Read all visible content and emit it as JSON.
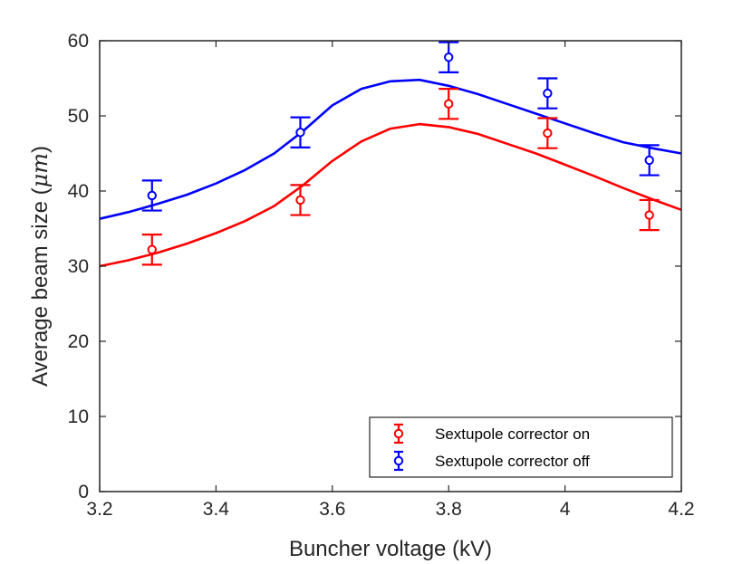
{
  "chart_data": {
    "type": "scatter",
    "title": "",
    "xlabel": "Buncher voltage (kV)",
    "ylabel_prefix": "Average beam size (",
    "ylabel_unit": "μm",
    "ylabel_suffix": ")",
    "xlim": [
      3.2,
      4.2
    ],
    "ylim": [
      0,
      60
    ],
    "xticks": [
      3.2,
      3.4,
      3.6,
      3.8,
      4.0,
      4.2
    ],
    "xtick_labels": [
      "3.2",
      "3.4",
      "3.6",
      "3.8",
      "4",
      "4.2"
    ],
    "yticks": [
      0,
      10,
      20,
      30,
      40,
      50,
      60
    ],
    "ytick_labels": [
      "0",
      "10",
      "20",
      "30",
      "40",
      "50",
      "60"
    ],
    "grid": false,
    "legend_position": "bottom-right",
    "series": [
      {
        "name": "Sextupole corrector on",
        "color": "#ff0000",
        "points": [
          {
            "x": 3.29,
            "y": 32.2,
            "err": 2.0
          },
          {
            "x": 3.545,
            "y": 38.8,
            "err": 2.0
          },
          {
            "x": 3.8,
            "y": 51.6,
            "err": 2.0
          },
          {
            "x": 3.97,
            "y": 47.7,
            "err": 2.0
          },
          {
            "x": 4.145,
            "y": 36.8,
            "err": 2.0
          }
        ],
        "fit": {
          "x": [
            3.2,
            3.25,
            3.3,
            3.35,
            3.4,
            3.45,
            3.5,
            3.55,
            3.6,
            3.65,
            3.7,
            3.75,
            3.8,
            3.85,
            3.9,
            3.95,
            4.0,
            4.05,
            4.1,
            4.15,
            4.2
          ],
          "y": [
            30.0,
            30.8,
            31.8,
            33.0,
            34.4,
            36.0,
            38.0,
            40.8,
            44.0,
            46.6,
            48.3,
            48.9,
            48.5,
            47.6,
            46.3,
            45.0,
            43.5,
            42.0,
            40.4,
            38.9,
            37.5
          ]
        }
      },
      {
        "name": "Sextupole corrector off",
        "color": "#0000ff",
        "points": [
          {
            "x": 3.29,
            "y": 39.4,
            "err": 2.0
          },
          {
            "x": 3.545,
            "y": 47.8,
            "err": 2.0
          },
          {
            "x": 3.8,
            "y": 57.8,
            "err": 2.0
          },
          {
            "x": 3.97,
            "y": 53.0,
            "err": 2.0
          },
          {
            "x": 4.145,
            "y": 44.1,
            "err": 2.0
          }
        ],
        "fit": {
          "x": [
            3.2,
            3.25,
            3.3,
            3.35,
            3.4,
            3.45,
            3.5,
            3.55,
            3.6,
            3.65,
            3.7,
            3.75,
            3.8,
            3.85,
            3.9,
            3.95,
            4.0,
            4.05,
            4.1,
            4.15,
            4.2
          ],
          "y": [
            36.3,
            37.2,
            38.3,
            39.5,
            41.0,
            42.8,
            45.0,
            48.0,
            51.4,
            53.6,
            54.6,
            54.8,
            54.0,
            52.9,
            51.6,
            50.3,
            49.0,
            47.7,
            46.5,
            45.7,
            45.0
          ]
        }
      }
    ]
  }
}
